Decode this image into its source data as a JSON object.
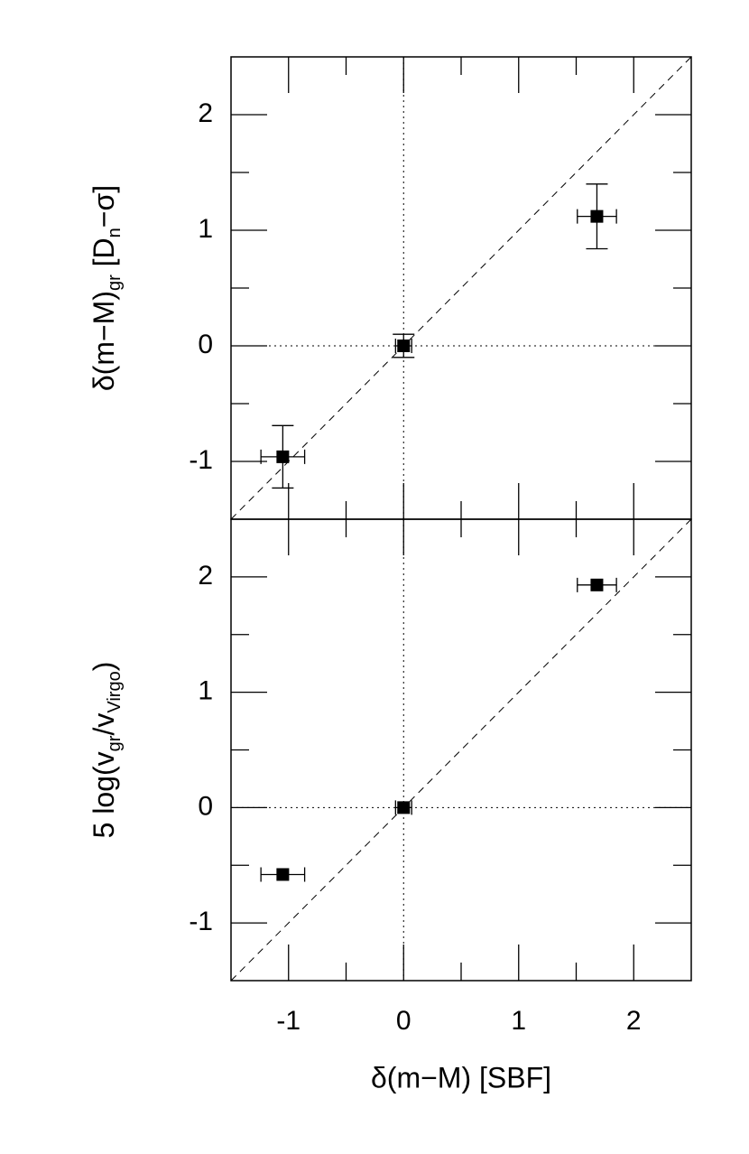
{
  "chart_data": [
    {
      "type": "scatter",
      "ylabel": [
        {
          "text": "δ(m−M)"
        },
        {
          "text": "gr",
          "sub": true
        },
        {
          "text": "  [D"
        },
        {
          "text": "n",
          "sub": true
        },
        {
          "text": "−σ]"
        }
      ],
      "x": [
        -1.05,
        0,
        1.68
      ],
      "series": [
        {
          "color": "#000000",
          "values": [
            -0.96,
            0,
            1.12
          ],
          "x_err": [
            0.19,
            0.07,
            0.17
          ],
          "y_err": [
            0.27,
            0.1,
            0.28
          ]
        }
      ],
      "xlim": [
        -1.5,
        2.5
      ],
      "xticks": [
        -1,
        0,
        1,
        2
      ],
      "xminor": [
        -0.5,
        0.5,
        1.5
      ],
      "ylim": [
        -1.5,
        2.5
      ],
      "yticks": [
        -1,
        0,
        1,
        2
      ],
      "yminor": [
        -0.5,
        0.5,
        1.5
      ],
      "show_xtick_labels": false,
      "identity_line": true,
      "zero_lines": true
    },
    {
      "type": "scatter",
      "ylabel": [
        {
          "text": "5  log(v"
        },
        {
          "text": "gr",
          "sub": true
        },
        {
          "text": "/v"
        },
        {
          "text": "Virgo",
          "sub": true
        },
        {
          "text": ")"
        }
      ],
      "xlabel": "δ(m−M)  [SBF]",
      "x": [
        -1.05,
        0,
        1.68
      ],
      "series": [
        {
          "color": "#000000",
          "values": [
            -0.58,
            0,
            1.93
          ],
          "x_err": [
            0.19,
            0.07,
            0.17
          ]
        }
      ],
      "xlim": [
        -1.5,
        2.5
      ],
      "xticks": [
        -1,
        0,
        1,
        2
      ],
      "xminor": [
        -0.5,
        0.5,
        1.5
      ],
      "ylim": [
        -1.5,
        2.5
      ],
      "yticks": [
        -1,
        0,
        1,
        2
      ],
      "yminor": [
        -0.5,
        0.5,
        1.5
      ],
      "show_xtick_labels": true,
      "identity_line": true,
      "zero_lines": true
    }
  ]
}
